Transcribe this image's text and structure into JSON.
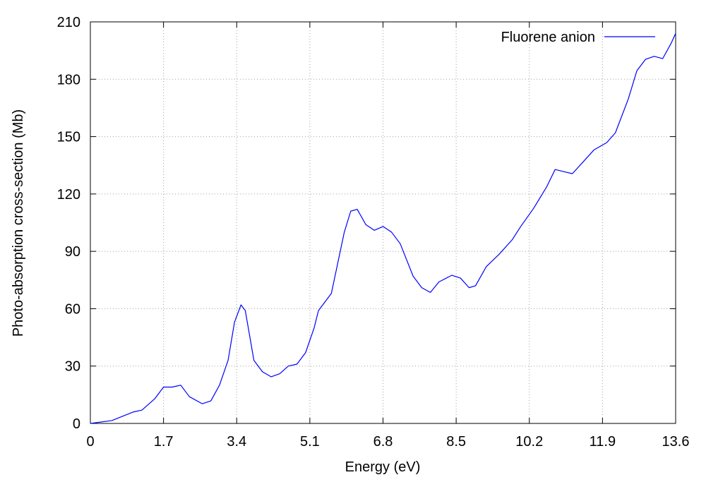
{
  "chart_data": {
    "type": "line",
    "xlabel": "Energy (eV)",
    "ylabel": "Photo-absorption cross-section (Mb)",
    "x": [
      0,
      0.5,
      1.0,
      1.2,
      1.5,
      1.7,
      1.9,
      2.1,
      2.3,
      2.6,
      2.8,
      3.0,
      3.2,
      3.35,
      3.5,
      3.6,
      3.8,
      4.0,
      4.2,
      4.4,
      4.6,
      4.8,
      5.0,
      5.2,
      5.3,
      5.6,
      5.9,
      6.05,
      6.2,
      6.4,
      6.6,
      6.8,
      7.0,
      7.2,
      7.5,
      7.7,
      7.9,
      8.1,
      8.4,
      8.6,
      8.8,
      8.95,
      9.2,
      9.5,
      9.8,
      10.0,
      10.3,
      10.6,
      10.8,
      11.0,
      11.2,
      11.5,
      11.7,
      12.0,
      12.2,
      12.5,
      12.7,
      12.9,
      13.1,
      13.3,
      13.5,
      13.6
    ],
    "series": [
      {
        "name": "Fluorene anion",
        "color": "#0000ff",
        "values": [
          0,
          1.5,
          6,
          7,
          13,
          19,
          19,
          20,
          14,
          10.3,
          11.8,
          20,
          33,
          53,
          62,
          59,
          33,
          27,
          24.4,
          26,
          30,
          31,
          37,
          50,
          59,
          68,
          100,
          111,
          112,
          104,
          101,
          103,
          100,
          94,
          77,
          71,
          68.5,
          74,
          77.5,
          76,
          71,
          72,
          82,
          88.5,
          96,
          103,
          112.5,
          123.6,
          132.8,
          131.7,
          130.6,
          138,
          143,
          146.9,
          152,
          169.7,
          184.5,
          190.4,
          192,
          190.8,
          199,
          204
        ]
      }
    ],
    "xlim": [
      0,
      13.6
    ],
    "xticks": [
      0,
      1.7,
      3.4,
      5.1,
      6.8,
      8.5,
      10.2,
      11.9,
      13.6
    ],
    "ylim": [
      0,
      210
    ],
    "yticks": [
      0,
      30,
      60,
      90,
      120,
      150,
      180,
      210
    ],
    "grid": true,
    "legend": "upper right"
  }
}
